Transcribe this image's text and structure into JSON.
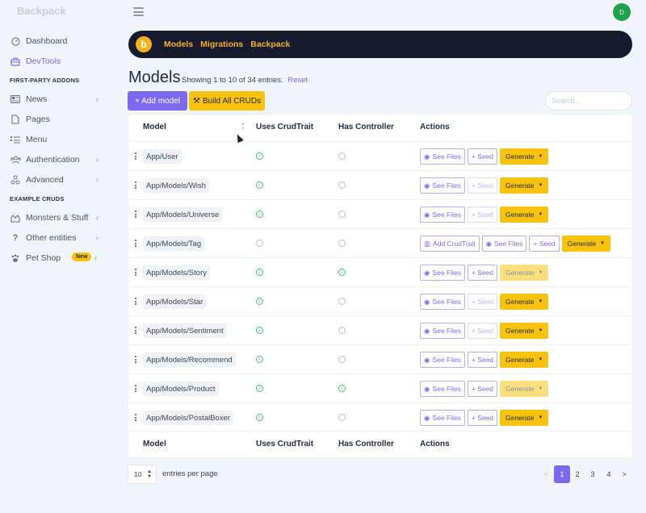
{
  "app": {
    "brand": "Backpack",
    "user_initial": "D"
  },
  "sidebar": {
    "items": [
      {
        "label": "Dashboard",
        "icon": "gauge-icon"
      },
      {
        "label": "DevTools",
        "icon": "toolbox-icon"
      }
    ],
    "section1": "FIRST-PARTY ADDONS",
    "addons": [
      {
        "label": "News",
        "icon": "newspaper-icon"
      },
      {
        "label": "Pages",
        "icon": "file-icon"
      },
      {
        "label": "Menu",
        "icon": "list-icon"
      },
      {
        "label": "Authentication",
        "icon": "users-icon"
      },
      {
        "label": "Advanced",
        "icon": "shapes-icon"
      }
    ],
    "section2": "EXAMPLE CRUDS",
    "examples": [
      {
        "label": "Monsters & Stuff",
        "icon": "monster-icon"
      },
      {
        "label": "Other entities",
        "icon": "question-icon"
      },
      {
        "label": "Pet Shop",
        "icon": "paw-icon",
        "badge": "New"
      }
    ]
  },
  "topnav": {
    "logo": "b",
    "links": [
      "Models",
      "Migrations",
      "Backpack"
    ]
  },
  "page": {
    "title": "Models",
    "subtitle": "Showing 1 to 10 of 34 entries.",
    "reset": "Reset",
    "add_button": "+ Add model",
    "build_button": "Build All CRUDs",
    "search_placeholder": "Search..."
  },
  "table": {
    "headers": [
      "Model",
      "Uses CrudTrait",
      "Has Controller",
      "Actions"
    ],
    "actions": {
      "see_files": "See Files",
      "seed": "+ Seed",
      "generate": "Generate",
      "add_crudtrait": "Add CrudTrait"
    },
    "rows": [
      {
        "model": "App/User",
        "crudtrait": true,
        "controller": false,
        "add_trait": false,
        "seed_enabled": true,
        "generate_enabled": true
      },
      {
        "model": "App/Models/Wish",
        "crudtrait": true,
        "controller": false,
        "add_trait": false,
        "seed_enabled": false,
        "generate_enabled": true
      },
      {
        "model": "App/Models/Universe",
        "crudtrait": true,
        "controller": false,
        "add_trait": false,
        "seed_enabled": false,
        "generate_enabled": true
      },
      {
        "model": "App/Models/Tag",
        "crudtrait": false,
        "controller": false,
        "add_trait": true,
        "seed_enabled": true,
        "generate_enabled": true
      },
      {
        "model": "App/Models/Story",
        "crudtrait": true,
        "controller": true,
        "add_trait": false,
        "seed_enabled": true,
        "generate_enabled": false
      },
      {
        "model": "App/Models/Star",
        "crudtrait": true,
        "controller": false,
        "add_trait": false,
        "seed_enabled": false,
        "generate_enabled": true
      },
      {
        "model": "App/Models/Sentiment",
        "crudtrait": true,
        "controller": false,
        "add_trait": false,
        "seed_enabled": false,
        "generate_enabled": true
      },
      {
        "model": "App/Models/Recommend",
        "crudtrait": true,
        "controller": false,
        "add_trait": false,
        "seed_enabled": true,
        "generate_enabled": true
      },
      {
        "model": "App/Models/Product",
        "crudtrait": true,
        "controller": true,
        "add_trait": false,
        "seed_enabled": true,
        "generate_enabled": false
      },
      {
        "model": "App/Models/PostalBoxer",
        "crudtrait": true,
        "controller": false,
        "add_trait": false,
        "seed_enabled": true,
        "generate_enabled": true
      }
    ]
  },
  "footer": {
    "per_page": "10",
    "per_page_label": "entries per page",
    "pages": [
      "<",
      "1",
      "2",
      "3",
      "4",
      ">"
    ],
    "active_page": "1"
  },
  "colors": {
    "accent": "#7c69ef",
    "warning": "#f8c20d",
    "success": "#3fbf6f",
    "dark": "#161a2e"
  }
}
